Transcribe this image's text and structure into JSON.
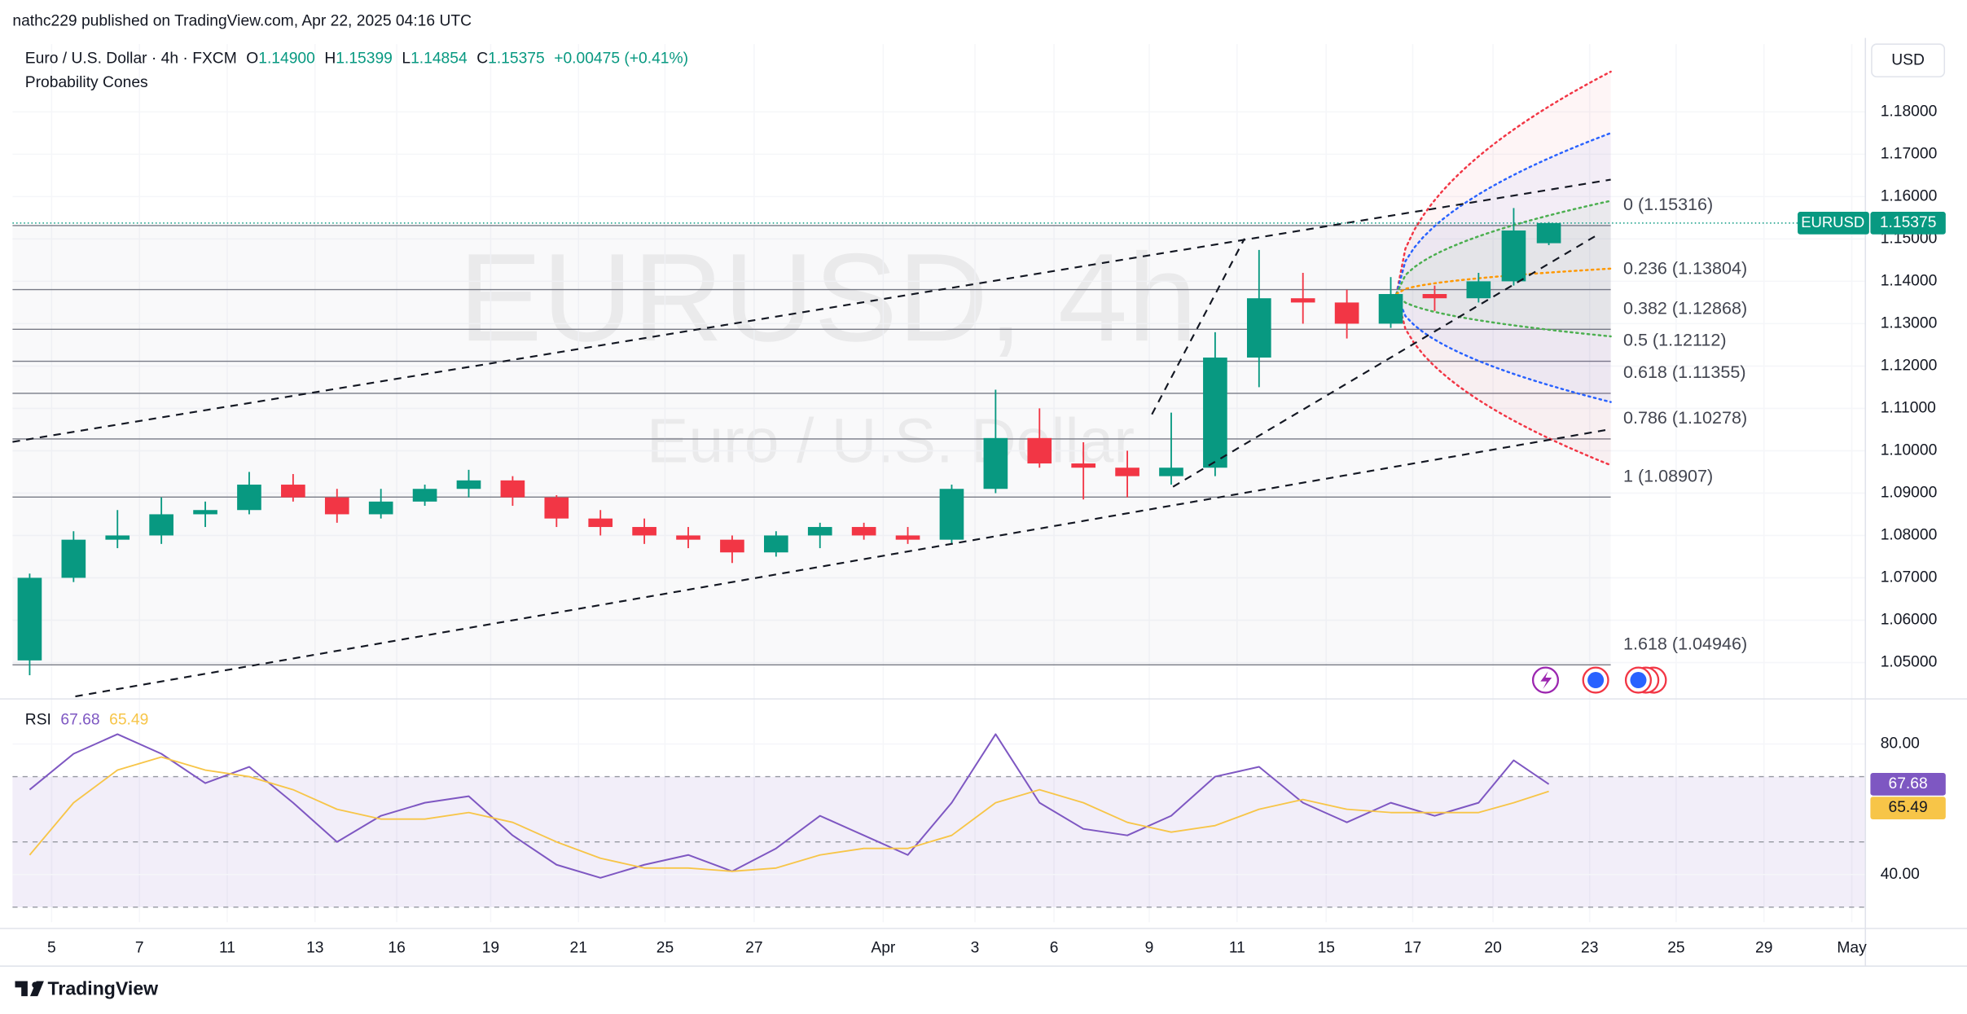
{
  "header": {
    "text": "nathc229 published on TradingView.com, Apr 22, 2025 04:16 UTC"
  },
  "legend": {
    "symbol": "Euro / U.S. Dollar · 4h · FXCM",
    "ohlc": [
      {
        "label": "O",
        "value": "1.14900"
      },
      {
        "label": "H",
        "value": "1.15399"
      },
      {
        "label": "L",
        "value": "1.14854"
      },
      {
        "label": "C",
        "value": "1.15375"
      }
    ],
    "change": "+0.00475 (+0.41%)",
    "indicator": "Probability Cones"
  },
  "watermark": {
    "symbol": "EURUSD, 4h",
    "description": "Euro / U.S. Dollar"
  },
  "footer": {
    "brand": "TradingView"
  },
  "chart_data": [
    {
      "type": "candlestick",
      "currency": "USD",
      "x": [
        -0.5,
        0.5,
        1.5,
        2.5,
        3.5,
        4.5,
        5.5,
        6.5,
        7.5,
        8.5,
        9.5,
        10.5,
        11.5,
        12.5,
        13.5,
        14.5,
        15.5,
        16.5,
        17.5,
        18.5,
        19.5,
        20.5,
        21.5,
        22.5,
        23.5,
        24.5,
        25.5,
        26.5,
        27.5,
        28.5,
        29.5,
        30.5,
        31.5,
        32.5,
        33.3,
        34.1
      ],
      "open": [
        1.0505,
        1.07,
        1.079,
        1.08,
        1.085,
        1.086,
        1.092,
        1.089,
        1.085,
        1.088,
        1.091,
        1.093,
        1.089,
        1.084,
        1.082,
        1.08,
        1.079,
        1.076,
        1.08,
        1.082,
        1.08,
        1.079,
        1.091,
        1.103,
        1.097,
        1.096,
        1.094,
        1.096,
        1.122,
        1.136,
        1.135,
        1.13,
        1.137,
        1.136,
        1.14,
        1.149
      ],
      "high": [
        1.071,
        1.081,
        1.086,
        1.089,
        1.088,
        1.095,
        1.0945,
        1.091,
        1.091,
        1.092,
        1.0955,
        1.094,
        1.0895,
        1.086,
        1.084,
        1.082,
        1.08,
        1.081,
        1.083,
        1.083,
        1.082,
        1.092,
        1.1144,
        1.11,
        1.102,
        1.1,
        1.109,
        1.128,
        1.1474,
        1.142,
        1.138,
        1.141,
        1.139,
        1.142,
        1.1573,
        1.15399
      ],
      "low": [
        1.047,
        1.069,
        1.077,
        1.078,
        1.082,
        1.085,
        1.088,
        1.083,
        1.084,
        1.087,
        1.089,
        1.087,
        1.082,
        1.08,
        1.078,
        1.077,
        1.0735,
        1.075,
        1.077,
        1.079,
        1.078,
        1.078,
        1.09,
        1.096,
        1.0885,
        1.089,
        1.092,
        1.094,
        1.115,
        1.13,
        1.1265,
        1.129,
        1.133,
        1.135,
        1.139,
        1.14854
      ],
      "close": [
        1.07,
        1.079,
        1.08,
        1.085,
        1.086,
        1.092,
        1.089,
        1.085,
        1.088,
        1.091,
        1.093,
        1.089,
        1.084,
        1.082,
        1.08,
        1.079,
        1.076,
        1.08,
        1.082,
        1.08,
        1.079,
        1.091,
        1.103,
        1.097,
        1.096,
        1.094,
        1.096,
        1.122,
        1.136,
        1.135,
        1.13,
        1.137,
        1.136,
        1.14,
        1.152,
        1.15375
      ],
      "up_color": "#089981",
      "down_color": "#f23645",
      "xlim": [
        -0.89,
        41.31
      ],
      "xticks": [
        {
          "value": 0,
          "label": "5"
        },
        {
          "value": 2,
          "label": "7"
        },
        {
          "value": 4,
          "label": "11"
        },
        {
          "value": 6,
          "label": "13"
        },
        {
          "value": 7.86,
          "label": "16"
        },
        {
          "value": 10,
          "label": "19"
        },
        {
          "value": 12,
          "label": "21"
        },
        {
          "value": 13.97,
          "label": "25"
        },
        {
          "value": 16,
          "label": "27"
        },
        {
          "value": 18.94,
          "label": "Apr"
        },
        {
          "value": 21.03,
          "label": "3"
        },
        {
          "value": 22.83,
          "label": "6"
        },
        {
          "value": 25,
          "label": "9"
        },
        {
          "value": 27,
          "label": "11"
        },
        {
          "value": 29.03,
          "label": "15"
        },
        {
          "value": 31,
          "label": "17"
        },
        {
          "value": 32.83,
          "label": "20"
        },
        {
          "value": 35.03,
          "label": "23"
        },
        {
          "value": 37,
          "label": "25"
        },
        {
          "value": 39,
          "label": "29"
        },
        {
          "value": 41,
          "label": "May"
        }
      ],
      "ylim": [
        1.042,
        1.196
      ],
      "yticks": [
        {
          "value": 1.05,
          "label": "1.05000"
        },
        {
          "value": 1.06,
          "label": "1.06000"
        },
        {
          "value": 1.07,
          "label": "1.07000"
        },
        {
          "value": 1.08,
          "label": "1.08000"
        },
        {
          "value": 1.09,
          "label": "1.09000"
        },
        {
          "value": 1.1,
          "label": "1.10000"
        },
        {
          "value": 1.11,
          "label": "1.11000"
        },
        {
          "value": 1.12,
          "label": "1.12000"
        },
        {
          "value": 1.13,
          "label": "1.13000"
        },
        {
          "value": 1.14,
          "label": "1.14000"
        },
        {
          "value": 1.15,
          "label": "1.15000"
        },
        {
          "value": 1.16,
          "label": "1.16000"
        },
        {
          "value": 1.17,
          "label": "1.17000"
        },
        {
          "value": 1.18,
          "label": "1.18000"
        }
      ],
      "last_price": {
        "symbol": "EURUSD",
        "value": 1.15375,
        "color": "#089981"
      },
      "fib_levels": [
        {
          "value": 1.15316,
          "label": "0 (1.15316)"
        },
        {
          "value": 1.13804,
          "label": "0.236 (1.13804)"
        },
        {
          "value": 1.12868,
          "label": "0.382 (1.12868)"
        },
        {
          "value": 1.12112,
          "label": "0.5 (1.12112)"
        },
        {
          "value": 1.11355,
          "label": "0.618 (1.11355)"
        },
        {
          "value": 1.10278,
          "label": "0.786 (1.10278)"
        },
        {
          "value": 1.08907,
          "label": "1 (1.08907)"
        },
        {
          "value": 1.04946,
          "label": "1.618 (1.04946)"
        }
      ],
      "fib_end_x": 35.51,
      "trendlines": [
        [
          [
            -0.89,
            1.1021
          ],
          [
            35.51,
            1.164
          ]
        ],
        [
          [
            0.54,
            1.042
          ],
          [
            35.51,
            1.1051
          ]
        ],
        [
          [
            25.54,
            1.0915
          ],
          [
            35.26,
            1.1513
          ]
        ],
        [
          [
            25.06,
            1.1086
          ],
          [
            27.17,
            1.1501
          ]
        ]
      ],
      "cones": {
        "start": [
          30.63,
          1.137
        ],
        "end_x": 35.51,
        "median": {
          "color": "#ff9800",
          "end": 1.143
        },
        "bands": [
          {
            "color": "#f23645",
            "upper": 1.1895,
            "lower": 1.0966
          },
          {
            "color": "#2962ff",
            "upper": 1.175,
            "lower": 1.1115
          },
          {
            "color": "#4caf50",
            "upper": 1.159,
            "lower": 1.127
          }
        ]
      }
    },
    {
      "type": "line",
      "title": "RSI",
      "series": [
        {
          "color": "#7e57c2",
          "values": [
            66,
            77,
            83,
            77,
            68,
            73,
            62,
            50,
            58,
            62,
            64,
            52,
            43,
            39,
            43,
            46,
            41,
            48,
            58,
            52,
            46,
            62,
            83,
            62,
            54,
            52,
            58,
            70,
            73,
            62,
            56,
            62,
            58,
            62,
            75,
            67.68
          ]
        },
        {
          "color": "#f7c548",
          "values": [
            46,
            62,
            72,
            76,
            72,
            70,
            66,
            60,
            57,
            57,
            59,
            56,
            50,
            45,
            42,
            42,
            41,
            42,
            46,
            48,
            48,
            52,
            62,
            66,
            62,
            56,
            53,
            55,
            60,
            63,
            60,
            59,
            59,
            59,
            62,
            65.49
          ]
        }
      ],
      "ylim": [
        25.4,
        91.5
      ],
      "yticks": [
        {
          "value": 80,
          "label": "80.00"
        },
        {
          "value": 40,
          "label": "40.00"
        }
      ],
      "levels": [
        70,
        50,
        30
      ],
      "band_color": "#7e57c2"
    }
  ]
}
